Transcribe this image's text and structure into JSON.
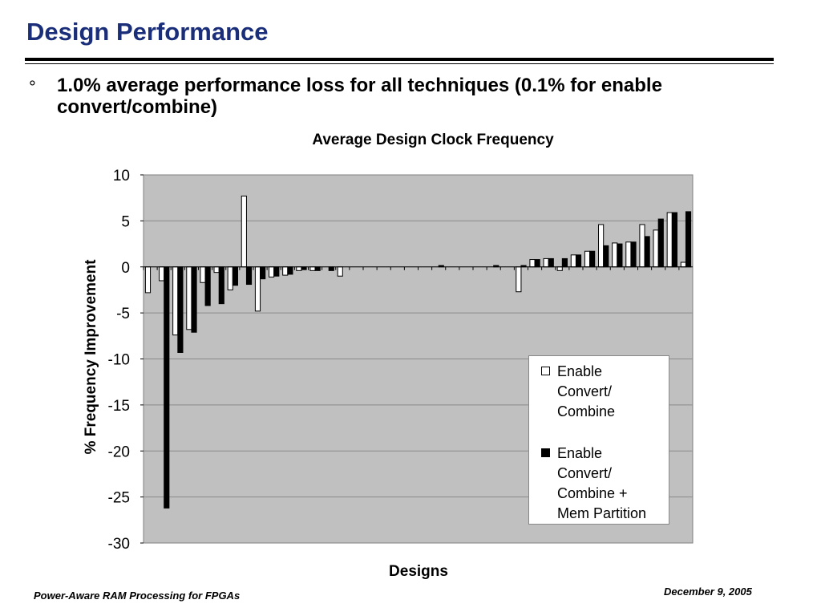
{
  "slide": {
    "title": "Design Performance",
    "bullet_glyph": "°",
    "bullet_text": "1.0% average performance loss for all techniques (0.1% for enable convert/combine)",
    "footer_left": "Power-Aware RAM Processing for FPGAs",
    "footer_right": "December 9, 2005"
  },
  "colors": {
    "title": "#1a2e7a",
    "plot_bg": "#c0c0c0",
    "series_1": "#ffffff",
    "series_2": "#000000"
  },
  "chart_data": {
    "type": "bar",
    "title": "Average Design Clock Frequency",
    "xlabel": "Designs",
    "ylabel": "% Frequency Improvement",
    "ylim": [
      -30,
      10
    ],
    "yticks": [
      10,
      5,
      0,
      -5,
      -10,
      -15,
      -20,
      -25,
      -30
    ],
    "grid": true,
    "legend_position": "lower-right",
    "categories_count": 40,
    "series": [
      {
        "name": "Enable Convert/ Combine",
        "values": [
          -2.8,
          -1.5,
          -7.4,
          -6.8,
          -1.7,
          -0.6,
          -2.5,
          7.7,
          -4.8,
          -1.1,
          -0.9,
          -0.4,
          -0.4,
          0,
          -1.0,
          0,
          0,
          0,
          0,
          0,
          0,
          0,
          0,
          0,
          0,
          0,
          0,
          -2.7,
          0.8,
          0.9,
          -0.4,
          1.3,
          1.7,
          4.6,
          2.6,
          2.7,
          4.6,
          4.0,
          5.9,
          0.5
        ]
      },
      {
        "name": "Enable Convert/ Combine + Mem Partition",
        "values": [
          0,
          -26.2,
          -9.3,
          -7.1,
          -4.2,
          -4.0,
          -2.0,
          -1.9,
          -1.3,
          -1.0,
          -0.8,
          -0.3,
          -0.4,
          -0.4,
          0,
          0,
          0,
          0,
          0,
          0,
          0,
          0.15,
          0,
          0,
          0,
          0.15,
          0,
          0.15,
          0.8,
          0.9,
          0.9,
          1.3,
          1.7,
          2.3,
          2.5,
          2.7,
          3.3,
          5.2,
          5.9,
          6.0
        ]
      }
    ]
  },
  "legend": {
    "items": [
      {
        "label": "Enable\nConvert/\nCombine"
      },
      {
        "label": "Enable\nConvert/\nCombine +\nMem Partition"
      }
    ]
  }
}
